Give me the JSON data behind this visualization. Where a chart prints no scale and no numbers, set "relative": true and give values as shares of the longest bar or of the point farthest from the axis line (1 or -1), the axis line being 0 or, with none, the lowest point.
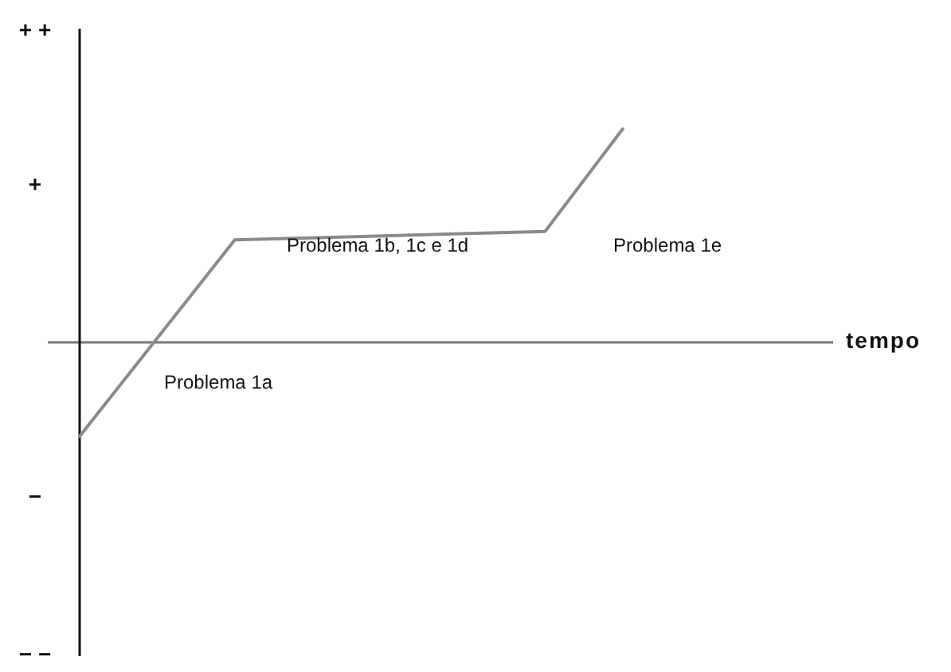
{
  "chart_data": {
    "type": "line",
    "relative": true,
    "categories": [
      null,
      null,
      null,
      null,
      null,
      null,
      null,
      null
    ],
    "values": [
      -0.44,
      0.02,
      0.48,
      0.49,
      0.5,
      0.51,
      0.52,
      1
    ],
    "color": "#8a8a8a",
    "annotations": [
      "+ +",
      "+",
      "−",
      "− −",
      "Problema 1a",
      "Problema 1b, 1c e 1d",
      "Problema 1e",
      "tempo"
    ]
  }
}
